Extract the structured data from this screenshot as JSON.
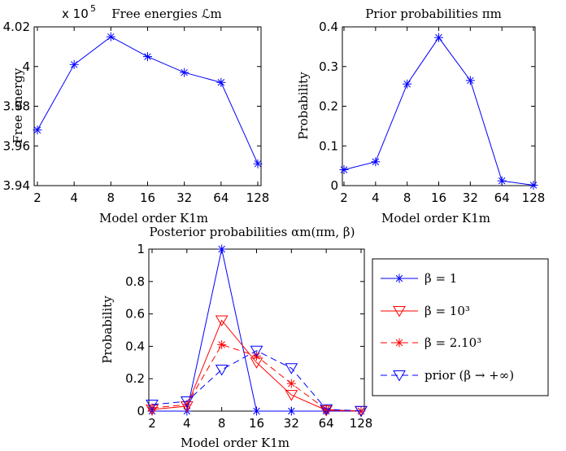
{
  "chart_data": [
    {
      "type": "line",
      "title": "Free energies ℒm",
      "exponent_label": "x 10",
      "exponent_power": "5",
      "xlabel": "Model order K1m",
      "ylabel": "Free energy",
      "categories": [
        "2",
        "4",
        "8",
        "16",
        "32",
        "64",
        "128"
      ],
      "ylim": [
        3.94,
        4.02
      ],
      "yticks": [
        "3.94",
        "3.96",
        "3.98",
        "4",
        "4.02"
      ],
      "series": [
        {
          "values": [
            3.968,
            4.001,
            4.015,
            4.005,
            3.997,
            3.992,
            3.951
          ],
          "color": "#0000ff",
          "marker": "asterisk",
          "line": "solid"
        }
      ]
    },
    {
      "type": "line",
      "title": "Prior probabilities πm",
      "xlabel": "Model order K1m",
      "ylabel": "Probability",
      "categories": [
        "2",
        "4",
        "8",
        "16",
        "32",
        "64",
        "128"
      ],
      "ylim": [
        0,
        0.4
      ],
      "yticks": [
        "0",
        "0.1",
        "0.2",
        "0.3",
        "0.4"
      ],
      "series": [
        {
          "values": [
            0.04,
            0.06,
            0.256,
            0.373,
            0.265,
            0.012,
            0.001
          ],
          "color": "#0000ff",
          "marker": "asterisk",
          "line": "solid"
        }
      ]
    },
    {
      "type": "line",
      "title": "Posterior probabilities αm(πm, β)",
      "xlabel": "Model order K1m",
      "ylabel": "Probability",
      "categories": [
        "2",
        "4",
        "8",
        "16",
        "32",
        "64",
        "128"
      ],
      "ylim": [
        0,
        1
      ],
      "yticks": [
        "0",
        "0.2",
        "0.4",
        "0.6",
        "0.8",
        "1"
      ],
      "legend_position": "right, outside plot",
      "series": [
        {
          "name": "β = 1",
          "values": [
            0,
            0,
            1,
            0,
            0,
            0,
            0
          ],
          "color": "#0000ff",
          "marker": "asterisk",
          "line": "solid"
        },
        {
          "name": "β = 10³",
          "values": [
            0.01,
            0.03,
            0.56,
            0.3,
            0.1,
            0.005,
            0
          ],
          "color": "#ff0000",
          "marker": "triangle-down",
          "line": "solid"
        },
        {
          "name": "β = 2.10³",
          "values": [
            0.02,
            0.04,
            0.41,
            0.34,
            0.17,
            0.01,
            0
          ],
          "color": "#ff0000",
          "marker": "asterisk",
          "line": "dashed"
        },
        {
          "name": "prior (β → +∞)",
          "values": [
            0.04,
            0.06,
            0.256,
            0.373,
            0.265,
            0.012,
            0.001
          ],
          "color": "#0000ff",
          "marker": "triangle-down",
          "line": "dashed"
        }
      ]
    }
  ]
}
